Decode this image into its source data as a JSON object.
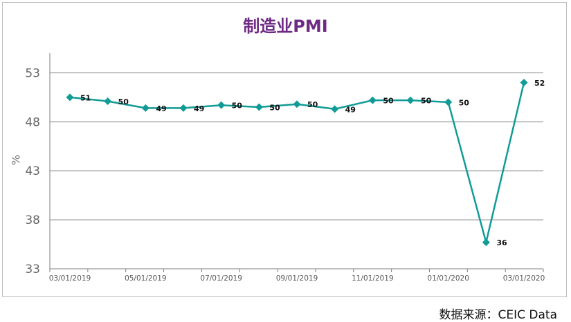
{
  "chart_data": {
    "type": "line",
    "title": "制造业PMI",
    "ylabel": "%",
    "xlabel": "",
    "ylim": [
      33,
      55
    ],
    "yticks": [
      33,
      38,
      43,
      48,
      53
    ],
    "x": [
      "03/01/2019",
      "04/01/2019",
      "05/01/2019",
      "06/01/2019",
      "07/01/2019",
      "08/01/2019",
      "09/01/2019",
      "10/01/2019",
      "11/01/2019",
      "12/01/2019",
      "01/01/2020",
      "02/01/2020",
      "03/01/2020"
    ],
    "xtick_labels": [
      "03/01/2019",
      "05/01/2019",
      "07/01/2019",
      "09/01/2019",
      "11/01/2019",
      "01/01/2020",
      "03/01/2020"
    ],
    "series": [
      {
        "values": [
          50.5,
          50.1,
          49.4,
          49.4,
          49.7,
          49.5,
          49.8,
          49.3,
          50.2,
          50.2,
          50.0,
          35.7,
          52.0
        ],
        "data_labels": [
          "51",
          "50",
          "49",
          "49",
          "50",
          "50",
          "50",
          "49",
          "50",
          "50",
          "50",
          "36",
          "52"
        ],
        "color": "#119b96"
      }
    ],
    "grid": true,
    "legend": "none"
  },
  "source": "数据来源：CEIC Data",
  "colors": {
    "title": "#6e2a84",
    "line": "#119b96",
    "grid": "#7f7f7f"
  }
}
